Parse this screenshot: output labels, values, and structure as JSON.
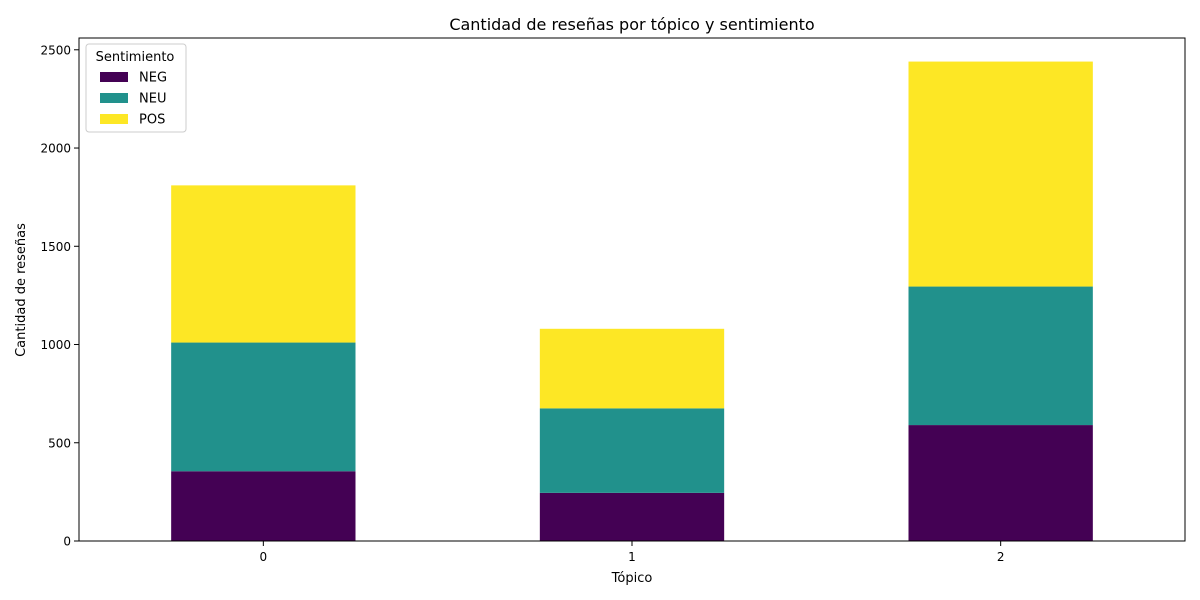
{
  "chart_data": {
    "type": "bar",
    "stacked": true,
    "title": "Cantidad de reseñas por tópico y sentimiento",
    "xlabel": "Tópico",
    "ylabel": "Cantidad de reseñas",
    "categories": [
      "0",
      "1",
      "2"
    ],
    "ylim": [
      0,
      2560
    ],
    "yticks": [
      0,
      500,
      1000,
      1500,
      2000,
      2500
    ],
    "grid": false,
    "legend": {
      "title": "Sentimiento",
      "placement": "top-left"
    },
    "series": [
      {
        "name": "NEG",
        "color": "#440154",
        "values": [
          355,
          245,
          590
        ]
      },
      {
        "name": "NEU",
        "color": "#21918c",
        "values": [
          655,
          430,
          705
        ]
      },
      {
        "name": "POS",
        "color": "#fde725",
        "values": [
          800,
          405,
          1145
        ]
      }
    ]
  }
}
